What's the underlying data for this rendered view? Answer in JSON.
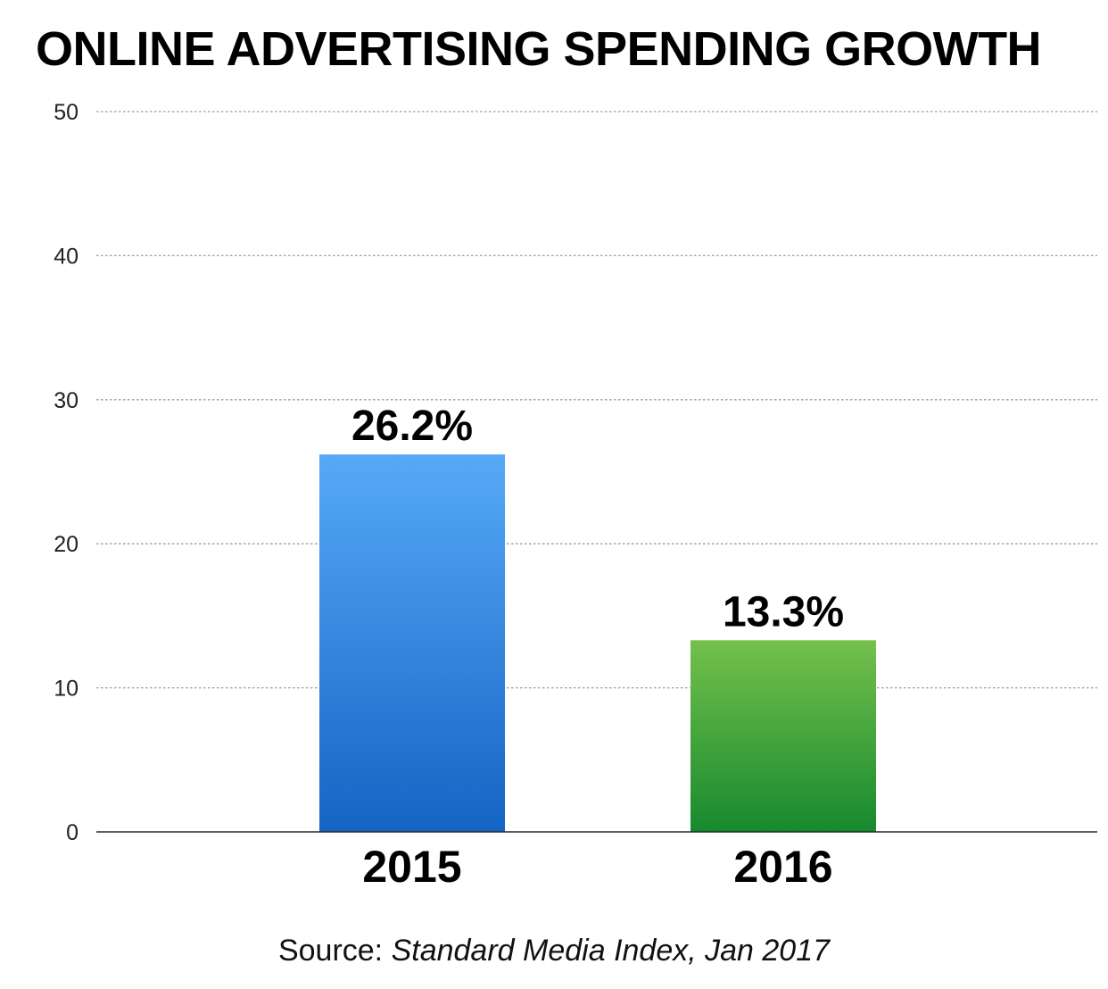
{
  "chart_data": {
    "type": "bar",
    "title": "ONLINE ADVERTISING SPENDING GROWTH",
    "categories": [
      "2015",
      "2016"
    ],
    "values": [
      26.2,
      13.3
    ],
    "value_labels": [
      "26.2%",
      "13.3%"
    ],
    "bar_colors": [
      {
        "top": "#56aaf7",
        "bottom": "#1464c4"
      },
      {
        "top": "#74c04c",
        "bottom": "#168a2e"
      }
    ],
    "ylim": [
      0,
      50
    ],
    "yticks": [
      0,
      10,
      20,
      30,
      40,
      50
    ],
    "grid": true,
    "xlabel": "",
    "ylabel": ""
  },
  "source": {
    "prefix": "Source: ",
    "detail": "Standard Media Index, Jan 2017"
  }
}
